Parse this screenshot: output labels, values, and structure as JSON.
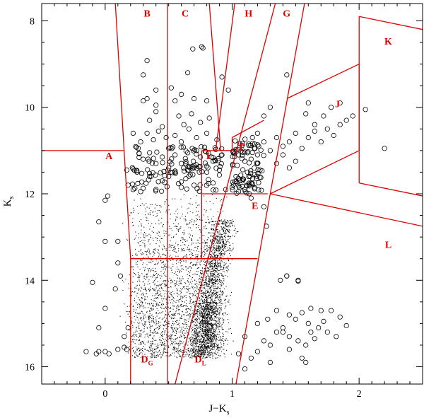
{
  "chart_data": {
    "type": "scatter",
    "title": "",
    "xlabel": "J−K",
    "xlabel_sub": "s",
    "ylabel": "K",
    "ylabel_sub": "s",
    "xlim": [
      -0.5,
      2.5
    ],
    "ylim": [
      16.4,
      7.6
    ],
    "y_inverted": true,
    "grid": false,
    "x_ticks": [
      0,
      1,
      2
    ],
    "x_tick_labels": [
      "0",
      "1",
      "2"
    ],
    "y_ticks": [
      8,
      10,
      12,
      14,
      16
    ],
    "y_tick_labels": [
      "8",
      "10",
      "12",
      "14",
      "16"
    ],
    "boundary_color": "#e00000",
    "regions": [
      {
        "label": "A",
        "x": 0.03,
        "y": 11.2
      },
      {
        "label": "B",
        "x": 0.33,
        "y": 7.9
      },
      {
        "label": "C",
        "x": 0.63,
        "y": 7.9
      },
      {
        "label": "H",
        "x": 1.13,
        "y": 7.9
      },
      {
        "label": "G",
        "x": 1.43,
        "y": 7.9
      },
      {
        "label": "K",
        "x": 2.23,
        "y": 8.55
      },
      {
        "label": "J",
        "x": 1.83,
        "y": 10.0
      },
      {
        "label": "F",
        "x": 1.08,
        "y": 11.0
      },
      {
        "label": "I",
        "x": 0.81,
        "y": 11.2
      },
      {
        "label": "E",
        "x": 1.18,
        "y": 12.35
      },
      {
        "label": "L",
        "x": 2.23,
        "y": 13.25
      },
      {
        "label": "D",
        "sub": "G",
        "x": 0.33,
        "y": 15.9
      },
      {
        "label": "D",
        "sub": "L",
        "x": 0.75,
        "y": 15.9
      }
    ],
    "boundaries": [
      [
        [
          -0.5,
          11.0
        ],
        [
          0.15,
          11.0
        ]
      ],
      [
        [
          0.08,
          7.6
        ],
        [
          0.2,
          13.5
        ]
      ],
      [
        [
          0.2,
          13.5
        ],
        [
          0.2,
          16.4
        ]
      ],
      [
        [
          0.49,
          7.6
        ],
        [
          0.49,
          13.5
        ]
      ],
      [
        [
          0.49,
          13.5
        ],
        [
          0.49,
          16.4
        ]
      ],
      [
        [
          0.2,
          13.5
        ],
        [
          1.2,
          13.5
        ]
      ],
      [
        [
          0.76,
          11.0
        ],
        [
          0.76,
          13.5
        ]
      ],
      [
        [
          0.76,
          11.0
        ],
        [
          1.0,
          11.0
        ]
      ],
      [
        [
          0.76,
          12.0
        ],
        [
          1.28,
          12.0
        ]
      ],
      [
        [
          0.82,
          7.6
        ],
        [
          0.91,
          11.0
        ]
      ],
      [
        [
          0.91,
          11.0
        ],
        [
          1.0,
          11.0
        ]
      ],
      [
        [
          1.02,
          7.6
        ],
        [
          0.87,
          11.0
        ]
      ],
      [
        [
          1.02,
          7.6
        ],
        [
          1.1,
          7.6
        ]
      ],
      [
        [
          1.34,
          7.6
        ],
        [
          0.55,
          16.4
        ]
      ],
      [
        [
          1.57,
          7.6
        ],
        [
          1.03,
          16.4
        ]
      ],
      [
        [
          1.0,
          10.7
        ],
        [
          1.25,
          10.3
        ]
      ],
      [
        [
          1.0,
          11.0
        ],
        [
          1.0,
          10.7
        ]
      ],
      [
        [
          1.43,
          9.8
        ],
        [
          2.0,
          9.0
        ]
      ],
      [
        [
          2.0,
          9.0
        ],
        [
          2.0,
          11.0
        ]
      ],
      [
        [
          2.0,
          11.0
        ],
        [
          1.3,
          12.0
        ]
      ],
      [
        [
          1.3,
          12.0
        ],
        [
          2.5,
          12.75
        ]
      ],
      [
        [
          2.0,
          7.9
        ],
        [
          2.5,
          8.2
        ]
      ],
      [
        [
          2.0,
          7.9
        ],
        [
          2.0,
          11.75
        ]
      ],
      [
        [
          2.0,
          11.75
        ],
        [
          2.5,
          12.05
        ]
      ]
    ],
    "series": [
      {
        "marker": "open-circle",
        "points": [
          [
            -0.15,
            15.65
          ],
          [
            -0.07,
            15.7
          ],
          [
            -0.05,
            15.65
          ],
          [
            0.0,
            15.65
          ],
          [
            0.03,
            15.7
          ],
          [
            0.1,
            15.6
          ],
          [
            0.15,
            15.55
          ],
          [
            0.17,
            15.6
          ],
          [
            0.15,
            15.3
          ],
          [
            0.18,
            15.1
          ],
          [
            0.0,
            14.65
          ],
          [
            -0.1,
            14.05
          ],
          [
            -0.05,
            15.1
          ],
          [
            0.1,
            13.6
          ],
          [
            0.12,
            13.9
          ],
          [
            0.08,
            14.2
          ],
          [
            0.1,
            13.1
          ],
          [
            0.0,
            13.1
          ],
          [
            -0.05,
            12.65
          ],
          [
            0.0,
            12.15
          ],
          [
            0.02,
            12.05
          ],
          [
            0.18,
            11.8
          ],
          [
            0.17,
            11.45
          ],
          [
            0.25,
            11.5
          ],
          [
            0.22,
            11.9
          ],
          [
            0.28,
            11.95
          ],
          [
            0.35,
            11.6
          ],
          [
            0.4,
            11.9
          ],
          [
            0.45,
            11.7
          ],
          [
            0.5,
            11.6
          ],
          [
            0.55,
            11.5
          ],
          [
            0.6,
            11.85
          ],
          [
            0.65,
            11.45
          ],
          [
            0.7,
            11.8
          ],
          [
            0.8,
            11.5
          ],
          [
            0.85,
            11.75
          ],
          [
            0.9,
            11.45
          ],
          [
            0.95,
            11.9
          ],
          [
            0.3,
            11.2
          ],
          [
            0.35,
            11.05
          ],
          [
            0.4,
            11.3
          ],
          [
            0.45,
            11.15
          ],
          [
            0.5,
            11.4
          ],
          [
            0.55,
            11.1
          ],
          [
            0.6,
            11.3
          ],
          [
            0.65,
            11.05
          ],
          [
            0.7,
            11.35
          ],
          [
            0.75,
            11.15
          ],
          [
            0.85,
            11.25
          ],
          [
            0.92,
            11.1
          ],
          [
            0.28,
            10.8
          ],
          [
            0.33,
            10.6
          ],
          [
            0.38,
            10.75
          ],
          [
            0.42,
            10.55
          ],
          [
            0.48,
            10.7
          ],
          [
            0.55,
            10.65
          ],
          [
            0.6,
            10.8
          ],
          [
            0.66,
            10.5
          ],
          [
            0.72,
            10.7
          ],
          [
            0.8,
            10.6
          ],
          [
            0.88,
            10.75
          ],
          [
            0.35,
            10.3
          ],
          [
            0.4,
            10.1
          ],
          [
            0.45,
            10.45
          ],
          [
            0.58,
            10.2
          ],
          [
            0.62,
            10.4
          ],
          [
            0.68,
            10.15
          ],
          [
            0.75,
            10.35
          ],
          [
            0.82,
            10.25
          ],
          [
            0.3,
            9.85
          ],
          [
            0.33,
            9.8
          ],
          [
            0.4,
            9.95
          ],
          [
            0.55,
            9.85
          ],
          [
            0.6,
            9.7
          ],
          [
            0.7,
            9.8
          ],
          [
            0.3,
            9.25
          ],
          [
            0.33,
            8.92
          ],
          [
            0.4,
            9.6
          ],
          [
            0.52,
            9.55
          ],
          [
            0.65,
            9.2
          ],
          [
            0.69,
            8.65
          ],
          [
            0.76,
            8.6
          ],
          [
            0.77,
            8.63
          ],
          [
            0.8,
            9.85
          ],
          [
            0.92,
            9.3
          ],
          [
            0.97,
            9.6
          ],
          [
            0.22,
            10.6
          ],
          [
            0.26,
            10.95
          ],
          [
            0.5,
            10.95
          ],
          [
            0.72,
            11.0
          ],
          [
            1.0,
            11.85
          ],
          [
            1.03,
            11.6
          ],
          [
            1.05,
            11.95
          ],
          [
            1.08,
            11.7
          ],
          [
            1.1,
            11.9
          ],
          [
            1.12,
            11.5
          ],
          [
            1.15,
            11.75
          ],
          [
            1.18,
            11.55
          ],
          [
            1.2,
            11.3
          ],
          [
            1.22,
            11.45
          ],
          [
            1.05,
            11.1
          ],
          [
            1.1,
            11.25
          ],
          [
            1.12,
            11.05
          ],
          [
            1.15,
            11.2
          ],
          [
            1.18,
            10.95
          ],
          [
            1.2,
            11.1
          ],
          [
            1.13,
            10.85
          ],
          [
            1.16,
            10.7
          ],
          [
            1.2,
            10.6
          ],
          [
            1.25,
            10.8
          ],
          [
            1.3,
            11.0
          ],
          [
            1.35,
            11.3
          ],
          [
            1.4,
            11.1
          ],
          [
            1.45,
            11.4
          ],
          [
            1.5,
            11.25
          ],
          [
            1.55,
            10.95
          ],
          [
            1.6,
            10.7
          ],
          [
            1.65,
            10.55
          ],
          [
            1.7,
            10.8
          ],
          [
            1.75,
            10.5
          ],
          [
            1.8,
            10.65
          ],
          [
            1.85,
            10.4
          ],
          [
            1.9,
            10.3
          ],
          [
            1.95,
            10.2
          ],
          [
            1.85,
            9.9
          ],
          [
            1.78,
            10.0
          ],
          [
            1.72,
            10.2
          ],
          [
            1.65,
            10.4
          ],
          [
            1.58,
            10.15
          ],
          [
            1.5,
            10.6
          ],
          [
            1.45,
            10.8
          ],
          [
            1.4,
            10.9
          ],
          [
            1.35,
            10.7
          ],
          [
            1.25,
            10.2
          ],
          [
            1.3,
            10.0
          ],
          [
            1.43,
            9.25
          ],
          [
            1.6,
            9.9
          ],
          [
            2.05,
            10.05
          ],
          [
            2.2,
            10.95
          ],
          [
            1.15,
            12.1
          ],
          [
            1.25,
            12.3
          ],
          [
            1.27,
            12.75
          ],
          [
            1.43,
            13.9
          ],
          [
            1.52,
            14.0
          ],
          [
            1.38,
            14.0
          ],
          [
            1.35,
            14.7
          ],
          [
            1.45,
            14.8
          ],
          [
            1.55,
            14.75
          ],
          [
            1.62,
            14.65
          ],
          [
            1.7,
            14.7
          ],
          [
            1.78,
            14.7
          ],
          [
            1.85,
            14.85
          ],
          [
            1.5,
            14.9
          ],
          [
            1.6,
            15.0
          ],
          [
            1.68,
            15.1
          ],
          [
            1.75,
            15.2
          ],
          [
            1.82,
            15.3
          ],
          [
            1.35,
            15.2
          ],
          [
            1.4,
            15.1
          ],
          [
            1.45,
            15.3
          ],
          [
            1.52,
            15.4
          ],
          [
            1.58,
            15.5
          ],
          [
            1.62,
            15.2
          ],
          [
            1.3,
            15.5
          ],
          [
            1.25,
            15.4
          ],
          [
            1.2,
            15.65
          ],
          [
            1.15,
            15.8
          ],
          [
            1.1,
            15.3
          ],
          [
            1.2,
            15.0
          ],
          [
            1.28,
            14.9
          ],
          [
            1.45,
            15.6
          ],
          [
            1.55,
            15.8
          ],
          [
            1.3,
            15.9
          ],
          [
            1.1,
            16.05
          ],
          [
            1.05,
            15.7
          ],
          [
            1.65,
            15.35
          ],
          [
            1.72,
            14.95
          ],
          [
            1.9,
            15.05
          ],
          [
            1.58,
            15.9
          ],
          [
            1.4,
            15.2
          ]
        ]
      },
      {
        "marker": "dot",
        "description_key": "dense field population",
        "generated": true
      }
    ]
  }
}
